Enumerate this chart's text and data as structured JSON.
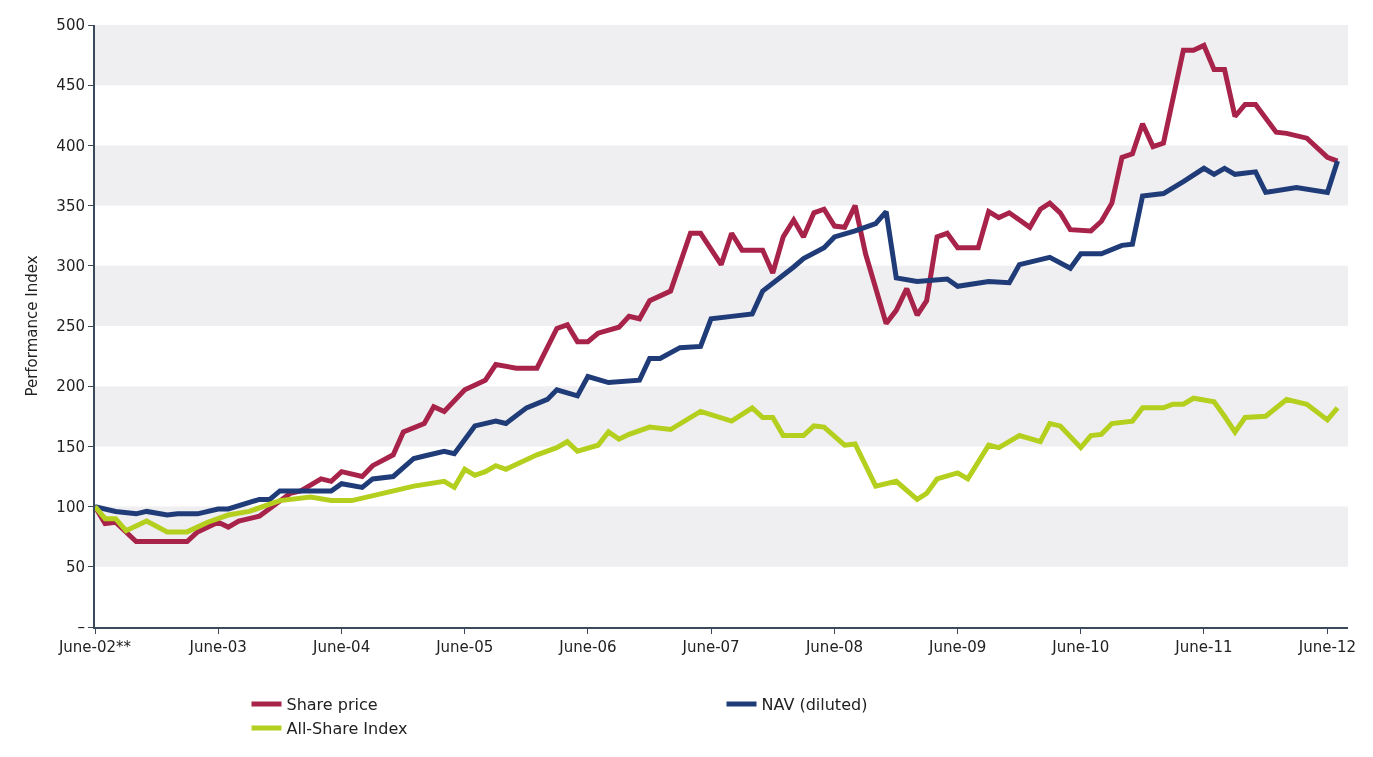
{
  "chart_data": {
    "type": "line",
    "ylabel": "Performance Index",
    "xlim": [
      "2002-06",
      "2012-08"
    ],
    "xticks": [
      {
        "value": "2002-06",
        "label": "June-02**"
      },
      {
        "value": "2003-06",
        "label": "June-03"
      },
      {
        "value": "2004-06",
        "label": "June-04"
      },
      {
        "value": "2005-06",
        "label": "June-05"
      },
      {
        "value": "2006-06",
        "label": "June-06"
      },
      {
        "value": "2007-06",
        "label": "June-07"
      },
      {
        "value": "2008-06",
        "label": "June-08"
      },
      {
        "value": "2009-06",
        "label": "June-09"
      },
      {
        "value": "2010-06",
        "label": "June-10"
      },
      {
        "value": "2011-06",
        "label": "June-11"
      },
      {
        "value": "2012-06",
        "label": "June-12"
      }
    ],
    "ylim": [
      0,
      500
    ],
    "yticks": [
      {
        "value": 0,
        "label": "–"
      },
      50,
      100,
      150,
      200,
      250,
      300,
      350,
      400,
      450,
      500
    ],
    "bands": [
      {
        "axis": "y",
        "from": 50,
        "to": 100,
        "color": "#efeef0"
      },
      {
        "axis": "y",
        "from": 150,
        "to": 200,
        "color": "#efeef0"
      },
      {
        "axis": "y",
        "from": 250,
        "to": 300,
        "color": "#efeef0"
      },
      {
        "axis": "y",
        "from": 350,
        "to": 400,
        "color": "#efeef0"
      },
      {
        "axis": "y",
        "from": 450,
        "to": 500,
        "color": "#efeef0"
      }
    ],
    "legend": "bottom",
    "line_style": "solid",
    "marker": "none",
    "series": [
      {
        "name": "Share price",
        "color": "#a8234a",
        "x": [
          "2002-06",
          "2002-07",
          "2002-08",
          "2002-10",
          "2003-01",
          "2003-03",
          "2003-04",
          "2003-06",
          "2003-07",
          "2003-08",
          "2003-09",
          "2003-10",
          "2004-01",
          "2004-02",
          "2004-04",
          "2004-05",
          "2004-06",
          "2004-08",
          "2004-09",
          "2004-11",
          "2004-12",
          "2005-02",
          "2005-03",
          "2005-04",
          "2005-06",
          "2005-08",
          "2005-09",
          "2005-11",
          "2006-01",
          "2006-03",
          "2006-04",
          "2006-05",
          "2006-06",
          "2006-07",
          "2006-09",
          "2006-10",
          "2006-11",
          "2006-12",
          "2007-02",
          "2007-04",
          "2007-05",
          "2007-07",
          "2007-08",
          "2007-09",
          "2007-11",
          "2007-12",
          "2008-01",
          "2008-02",
          "2008-03",
          "2008-04",
          "2008-05",
          "2008-06",
          "2008-07",
          "2008-08",
          "2008-09",
          "2008-11",
          "2008-12",
          "2009-01",
          "2009-02",
          "2009-03",
          "2009-04",
          "2009-05",
          "2009-06",
          "2009-08",
          "2009-09",
          "2009-10",
          "2009-11",
          "2010-01",
          "2010-02",
          "2010-03",
          "2010-04",
          "2010-05",
          "2010-07",
          "2010-08",
          "2010-09",
          "2010-10",
          "2010-11",
          "2010-12",
          "2011-01",
          "2011-02",
          "2011-04",
          "2011-05",
          "2011-06",
          "2011-07",
          "2011-08",
          "2011-09",
          "2011-10",
          "2011-11",
          "2012-01",
          "2012-02",
          "2012-04",
          "2012-06",
          "2012-07"
        ],
        "values": [
          100,
          86,
          87,
          71,
          71,
          71,
          79,
          87,
          83,
          88,
          90,
          92,
          111,
          113,
          123,
          121,
          129,
          125,
          134,
          143,
          162,
          169,
          183,
          179,
          197,
          205,
          218,
          215,
          215,
          248,
          251,
          237,
          237,
          244,
          249,
          258,
          256,
          271,
          279,
          327,
          327,
          301,
          327,
          313,
          313,
          294,
          324,
          338,
          324,
          344,
          347,
          333,
          332,
          350,
          310,
          252,
          263,
          281,
          259,
          271,
          324,
          327,
          315,
          315,
          345,
          340,
          344,
          332,
          347,
          352,
          344,
          330,
          329,
          337,
          352,
          390,
          393,
          418,
          399,
          402,
          479,
          479,
          483,
          463,
          463,
          424,
          434,
          434,
          411,
          410,
          406,
          390,
          387
        ]
      },
      {
        "name": "NAV (diluted)",
        "color": "#1f3c78",
        "x": [
          "2002-06",
          "2002-08",
          "2002-10",
          "2002-11",
          "2003-01",
          "2003-02",
          "2003-04",
          "2003-06",
          "2003-07",
          "2003-10",
          "2003-11",
          "2003-12",
          "2004-04",
          "2004-05",
          "2004-06",
          "2004-08",
          "2004-09",
          "2004-11",
          "2005-01",
          "2005-02",
          "2005-04",
          "2005-05",
          "2005-07",
          "2005-09",
          "2005-10",
          "2005-12",
          "2006-02",
          "2006-03",
          "2006-05",
          "2006-06",
          "2006-08",
          "2006-11",
          "2006-12",
          "2007-01",
          "2007-03",
          "2007-05",
          "2007-06",
          "2007-08",
          "2007-10",
          "2007-11",
          "2008-02",
          "2008-03",
          "2008-05",
          "2008-06",
          "2008-08",
          "2008-10",
          "2008-11",
          "2008-12",
          "2009-02",
          "2009-05",
          "2009-06",
          "2009-09",
          "2009-11",
          "2009-12",
          "2010-03",
          "2010-05",
          "2010-06",
          "2010-08",
          "2010-10",
          "2010-11",
          "2010-12",
          "2011-02",
          "2011-04",
          "2011-06",
          "2011-07",
          "2011-08",
          "2011-09",
          "2011-11",
          "2011-12",
          "2012-03",
          "2012-06",
          "2012-07"
        ],
        "values": [
          100,
          96,
          94,
          96,
          93,
          94,
          94,
          98,
          98,
          106,
          106,
          113,
          113,
          113,
          119,
          116,
          123,
          125,
          140,
          142,
          146,
          144,
          167,
          171,
          169,
          182,
          189,
          197,
          192,
          208,
          203,
          205,
          223,
          223,
          232,
          233,
          256,
          258,
          260,
          279,
          299,
          306,
          315,
          324,
          329,
          335,
          345,
          290,
          287,
          289,
          283,
          287,
          286,
          301,
          307,
          298,
          310,
          310,
          317,
          318,
          358,
          360,
          370,
          381,
          376,
          381,
          376,
          378,
          361,
          365,
          361,
          387
        ]
      },
      {
        "name": "All-Share Index",
        "color": "#b5cf1f",
        "x": [
          "2002-06",
          "2002-07",
          "2002-08",
          "2002-09",
          "2002-11",
          "2003-01",
          "2003-03",
          "2003-05",
          "2003-07",
          "2003-09",
          "2003-11",
          "2003-12",
          "2004-03",
          "2004-05",
          "2004-07",
          "2004-10",
          "2005-01",
          "2005-04",
          "2005-05",
          "2005-06",
          "2005-07",
          "2005-08",
          "2005-09",
          "2005-10",
          "2006-01",
          "2006-03",
          "2006-04",
          "2006-05",
          "2006-07",
          "2006-08",
          "2006-09",
          "2006-10",
          "2006-12",
          "2007-02",
          "2007-05",
          "2007-08",
          "2007-10",
          "2007-11",
          "2007-12",
          "2008-01",
          "2008-03",
          "2008-04",
          "2008-05",
          "2008-07",
          "2008-08",
          "2008-10",
          "2008-12",
          "2009-02",
          "2009-03",
          "2009-04",
          "2009-06",
          "2009-07",
          "2009-09",
          "2009-10",
          "2009-12",
          "2010-02",
          "2010-03",
          "2010-04",
          "2010-06",
          "2010-07",
          "2010-08",
          "2010-09",
          "2010-11",
          "2010-12",
          "2011-02",
          "2011-03",
          "2011-04",
          "2011-05",
          "2011-07",
          "2011-08",
          "2011-09",
          "2011-10",
          "2011-12",
          "2012-02",
          "2012-04",
          "2012-06",
          "2012-07"
        ],
        "values": [
          100,
          90,
          90,
          80,
          88,
          79,
          79,
          87,
          93,
          96,
          102,
          105,
          108,
          105,
          105,
          111,
          117,
          121,
          116,
          131,
          126,
          129,
          134,
          131,
          143,
          149,
          154,
          146,
          151,
          162,
          156,
          160,
          166,
          164,
          179,
          171,
          182,
          174,
          174,
          159,
          159,
          167,
          166,
          151,
          152,
          117,
          121,
          106,
          111,
          123,
          128,
          123,
          151,
          149,
          159,
          154,
          169,
          167,
          149,
          159,
          160,
          169,
          171,
          182,
          182,
          185,
          185,
          190,
          187,
          175,
          162,
          174,
          175,
          189,
          185,
          172,
          182
        ]
      }
    ]
  }
}
